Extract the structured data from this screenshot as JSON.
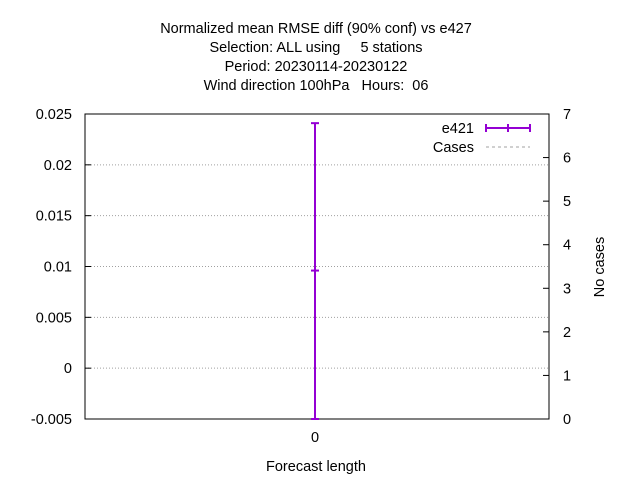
{
  "chart_data": {
    "type": "line",
    "title_lines": [
      "Normalized mean RMSE diff (90% conf) vs e427",
      "Selection: ALL using     5 stations",
      "Period: 20230114-20230122",
      "Wind direction 100hPa   Hours:  06"
    ],
    "xlabel": "Forecast length",
    "ylabel": "",
    "y2label": "No cases",
    "x_ticks": [
      "0"
    ],
    "y_ticks": [
      "0.025",
      "0.02",
      "0.015",
      "0.01",
      "0.005",
      "0",
      "-0.005"
    ],
    "y_tick_values": [
      0.025,
      0.02,
      0.015,
      0.01,
      0.005,
      0,
      -0.005
    ],
    "y2_ticks": [
      "7",
      "6",
      "5",
      "4",
      "3",
      "2",
      "1",
      "0"
    ],
    "y2_tick_values": [
      7,
      6,
      5,
      4,
      3,
      2,
      1,
      0
    ],
    "ylim": [
      -0.005,
      0.025
    ],
    "y2lim": [
      0,
      7
    ],
    "grid": true,
    "legend_position": "top-right",
    "series": [
      {
        "name": "e421",
        "color": "#9400d3",
        "points": [
          {
            "x": 0,
            "y": 0.0096,
            "ylow": -0.005,
            "yhigh": 0.0241
          }
        ]
      },
      {
        "name": "Cases",
        "color": "#a0a0a0",
        "style": "dashed",
        "axis": "y2",
        "points": []
      }
    ]
  }
}
